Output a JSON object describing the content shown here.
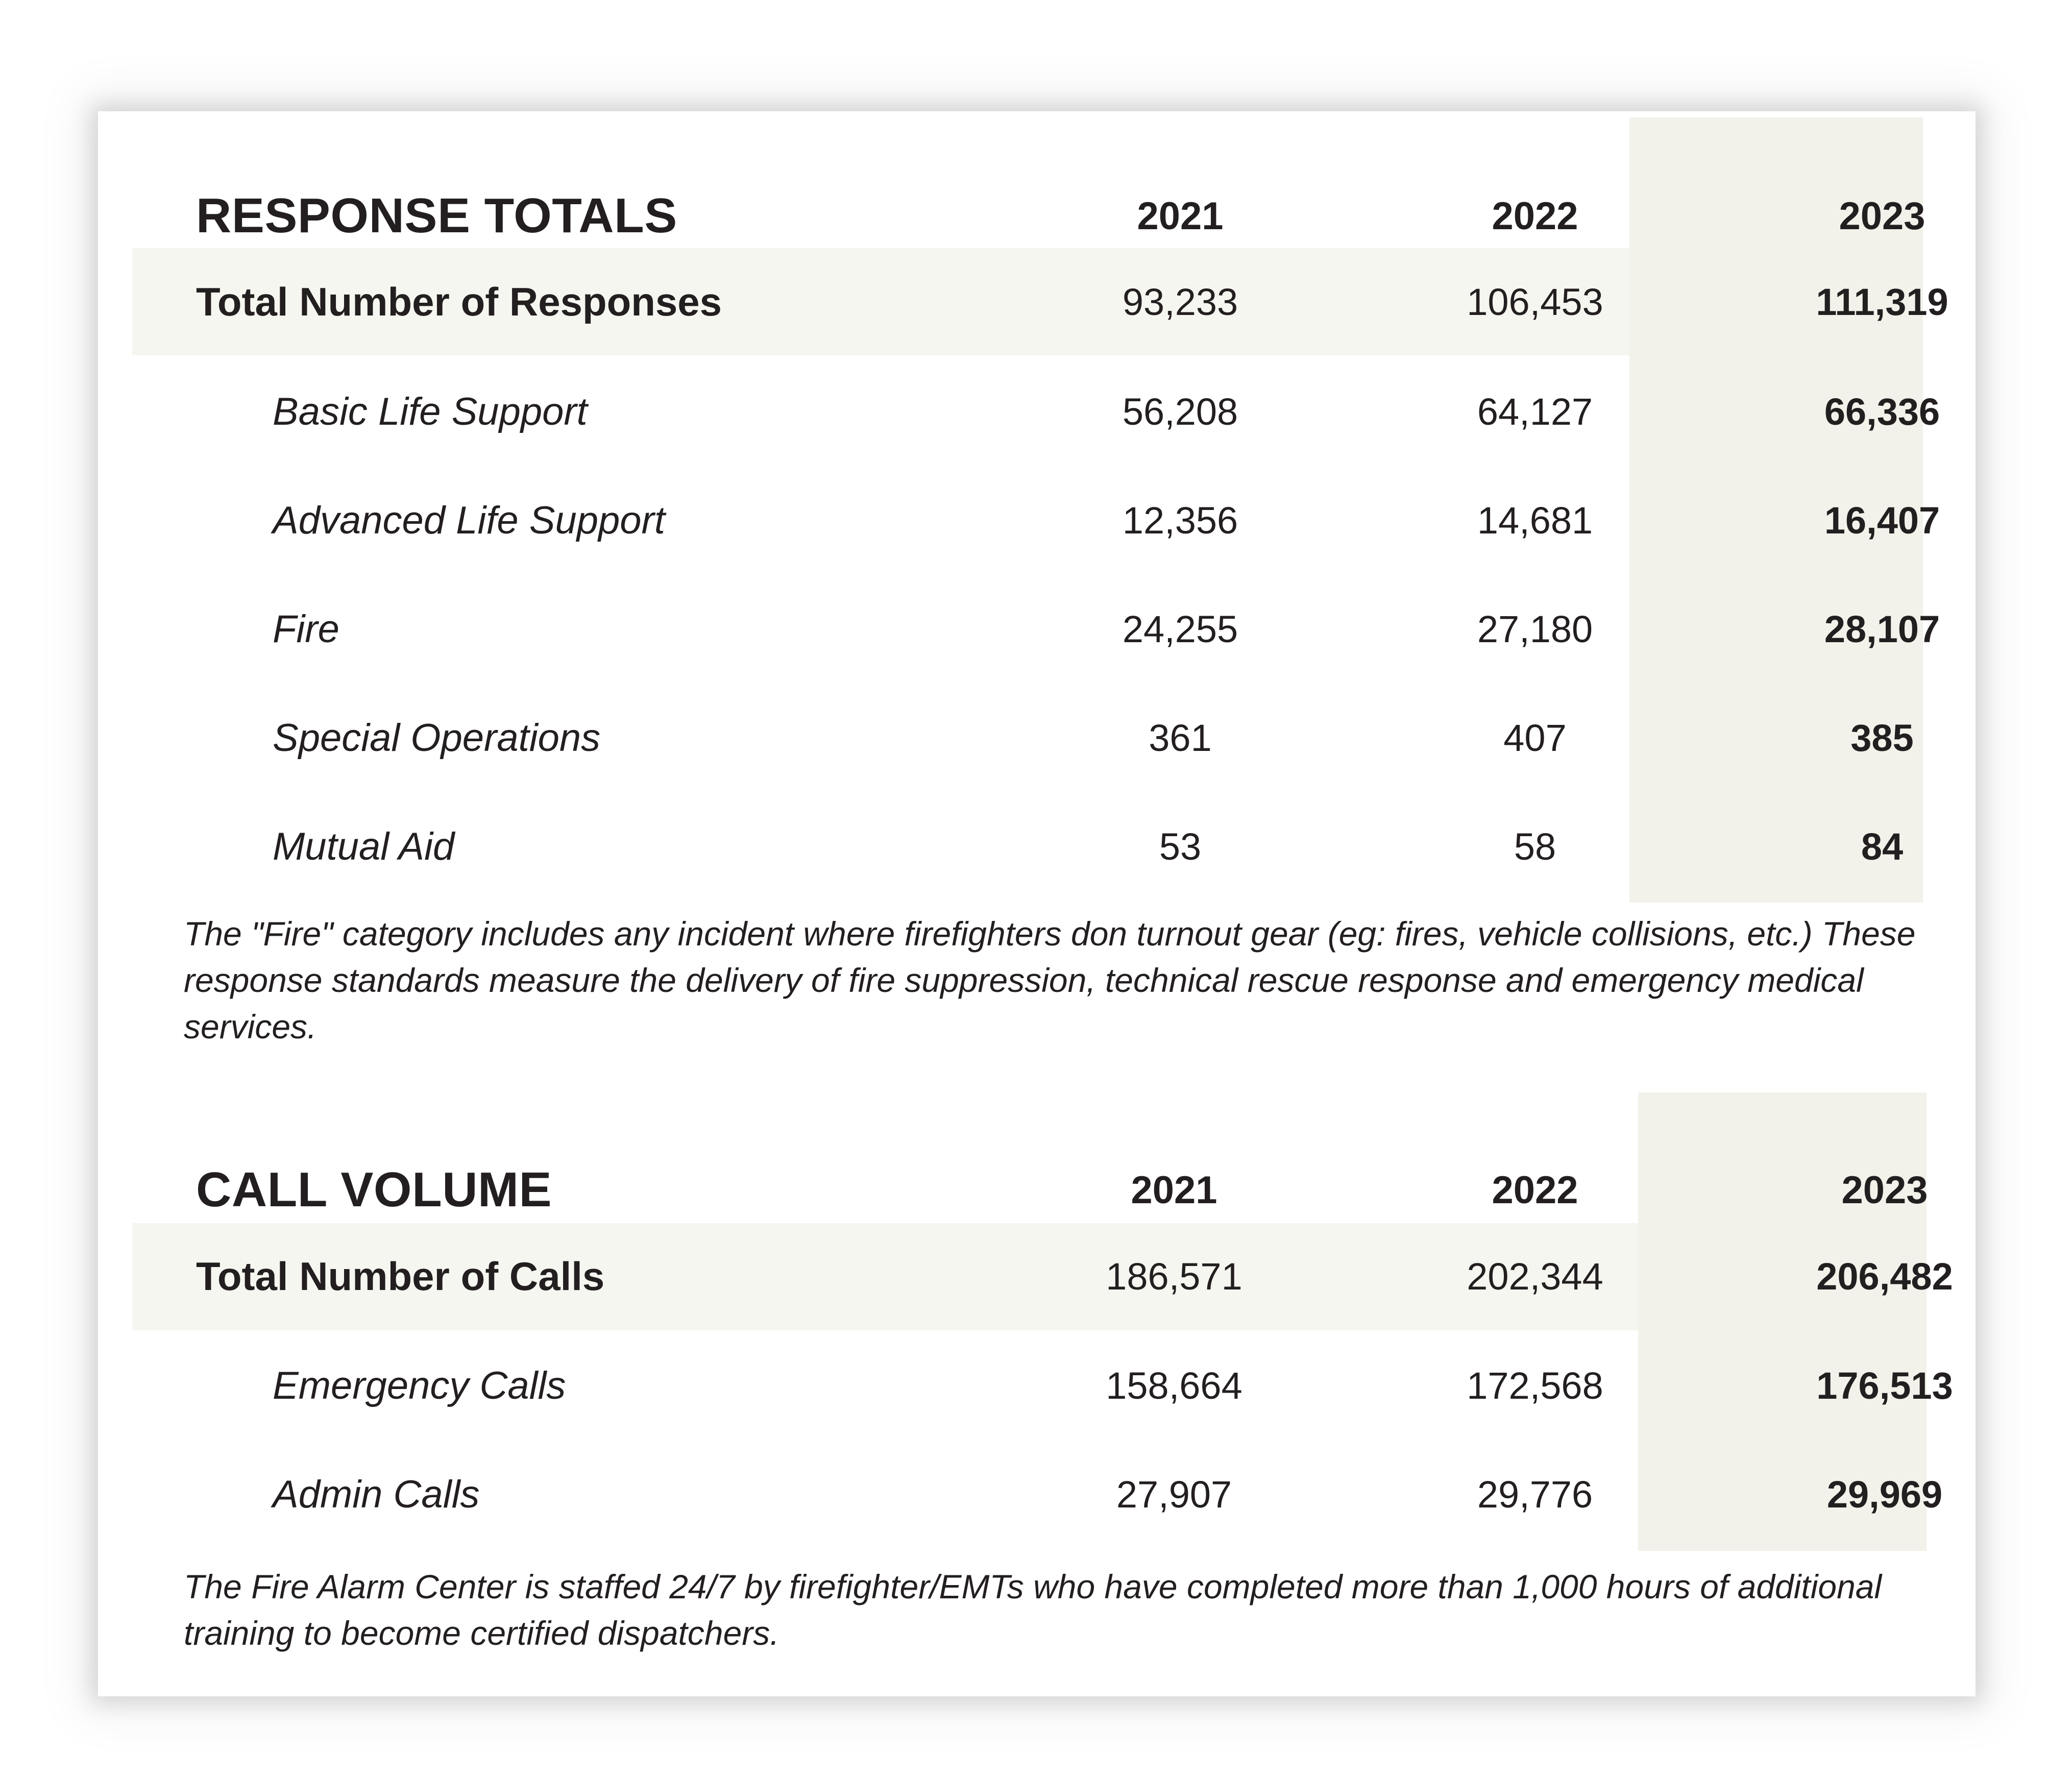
{
  "response_totals": {
    "title": "RESPONSE TOTALS",
    "years": [
      "2021",
      "2022",
      "2023"
    ],
    "total": {
      "label": "Total Number of Responses",
      "values": [
        "93,233",
        "106,453",
        "111,319"
      ]
    },
    "rows": [
      {
        "label": "Basic Life Support",
        "values": [
          "56,208",
          "64,127",
          "66,336"
        ]
      },
      {
        "label": "Advanced Life Support",
        "values": [
          "12,356",
          "14,681",
          "16,407"
        ]
      },
      {
        "label": "Fire",
        "values": [
          "24,255",
          "27,180",
          "28,107"
        ]
      },
      {
        "label": "Special Operations",
        "values": [
          "361",
          "407",
          "385"
        ]
      },
      {
        "label": "Mutual Aid",
        "values": [
          "53",
          "58",
          "84"
        ]
      }
    ],
    "note": "The \"Fire\" category includes any incident where firefighters don turnout gear (eg: fires, vehicle collisions, etc.) These response standards measure the delivery of fire suppression, technical rescue response and emergency medical services."
  },
  "call_volume": {
    "title": "CALL VOLUME",
    "years": [
      "2021",
      "2022",
      "2023"
    ],
    "total": {
      "label": "Total Number of Calls",
      "values": [
        "186,571",
        "202,344",
        "206,482"
      ]
    },
    "rows": [
      {
        "label": "Emergency Calls",
        "values": [
          "158,664",
          "172,568",
          "176,513"
        ]
      },
      {
        "label": "Admin Calls",
        "values": [
          "27,907",
          "29,776",
          "29,969"
        ]
      }
    ],
    "note": "The Fire Alarm Center is staffed 24/7 by firefighter/EMTs who have completed more than 1,000 hours of additional training to become certified dispatchers."
  },
  "colors": {
    "highlight_column": "#f2f2ea",
    "total_band": "#f6f6f0",
    "text": "#231f20"
  }
}
